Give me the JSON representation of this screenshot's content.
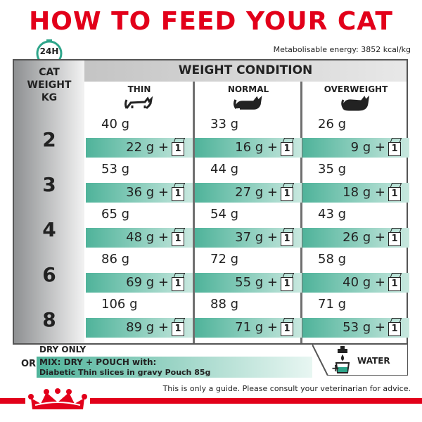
{
  "title": "HOW TO FEED YOUR CAT",
  "clock_label": "24H",
  "energy": "Metabolisable energy: 3852 kcal/kg",
  "weight_header": [
    "CAT",
    "WEIGHT",
    "KG"
  ],
  "condition_header": "WEIGHT CONDITION",
  "columns": [
    "THIN",
    "NORMAL",
    "OVERWEIGHT"
  ],
  "rows": [
    {
      "weight": "2",
      "cells": [
        {
          "dry": "40 g",
          "mix": "22 g  +"
        },
        {
          "dry": "33 g",
          "mix": "16 g  +"
        },
        {
          "dry": "26 g",
          "mix": "9 g  +"
        }
      ]
    },
    {
      "weight": "3",
      "cells": [
        {
          "dry": "53 g",
          "mix": "36 g  +"
        },
        {
          "dry": "44 g",
          "mix": "27 g  +"
        },
        {
          "dry": "35 g",
          "mix": "18 g  +"
        }
      ]
    },
    {
      "weight": "4",
      "cells": [
        {
          "dry": "65 g",
          "mix": "48 g  +"
        },
        {
          "dry": "54 g",
          "mix": "37 g  +"
        },
        {
          "dry": "43 g",
          "mix": "26 g  +"
        }
      ]
    },
    {
      "weight": "6",
      "cells": [
        {
          "dry": "86 g",
          "mix": "69 g  +"
        },
        {
          "dry": "72 g",
          "mix": "55 g  +"
        },
        {
          "dry": "58 g",
          "mix": "40 g  +"
        }
      ]
    },
    {
      "weight": "8",
      "cells": [
        {
          "dry": "106 g",
          "mix": "89 g  +"
        },
        {
          "dry": "88 g",
          "mix": "71 g  +"
        },
        {
          "dry": "71 g",
          "mix": "53 g  +"
        }
      ]
    }
  ],
  "pouch_count": "1",
  "legend": {
    "dry_only": "DRY ONLY",
    "or": "OR",
    "mix": "MIX: DRY + POUCH with:",
    "pouch": "Diabetic Thin slices in gravy Pouch 85g",
    "water": "WATER"
  },
  "disclaimer": "This is only a guide. Please consult your veterinarian for advice.",
  "colors": {
    "brand_red": "#e2001a",
    "mix_green": "#4fb39a"
  }
}
